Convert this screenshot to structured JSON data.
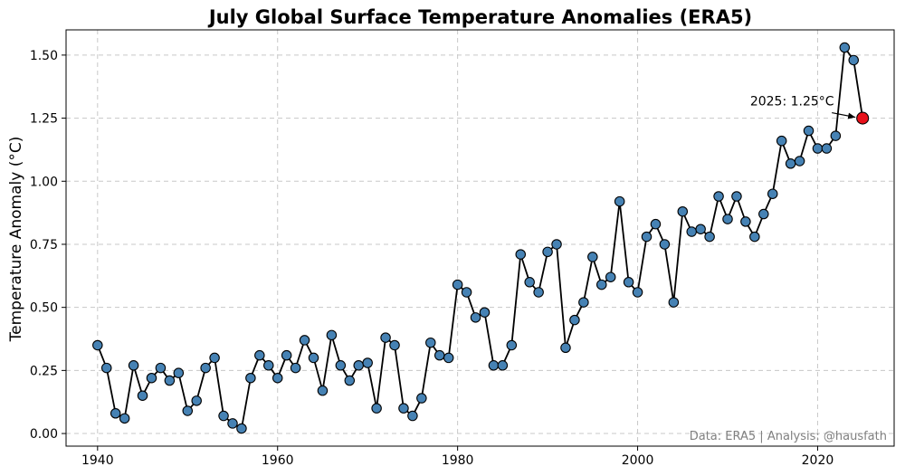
{
  "chart_data": {
    "type": "line",
    "title": "July Global Surface Temperature Anomalies (ERA5)",
    "xlabel": "",
    "ylabel": "Temperature Anomaly (°C)",
    "xlim": [
      1936.5,
      2028.5
    ],
    "ylim": [
      -0.05,
      1.6
    ],
    "grid": true,
    "x_ticks": [
      1940,
      1960,
      1980,
      2000,
      2020
    ],
    "y_ticks": [
      0.0,
      0.25,
      0.5,
      0.75,
      1.0,
      1.25,
      1.5
    ],
    "y_tick_labels": [
      "0.00",
      "0.25",
      "0.50",
      "0.75",
      "1.00",
      "1.25",
      "1.50"
    ],
    "colors": {
      "line": "#000000",
      "marker_fill": "#4682b4",
      "marker_edge": "#000000",
      "highlight_fill": "#e8101a"
    },
    "series": [
      {
        "x": [
          1940,
          1941,
          1942,
          1943,
          1944,
          1945,
          1946,
          1947,
          1948,
          1949,
          1950,
          1951,
          1952,
          1953,
          1954,
          1955,
          1956,
          1957,
          1958,
          1959,
          1960,
          1961,
          1962,
          1963,
          1964,
          1965,
          1966,
          1967,
          1968,
          1969,
          1970,
          1971,
          1972,
          1973,
          1974,
          1975,
          1976,
          1977,
          1978,
          1979,
          1980,
          1981,
          1982,
          1983,
          1984,
          1985,
          1986,
          1987,
          1988,
          1989,
          1990,
          1991,
          1992,
          1993,
          1994,
          1995,
          1996,
          1997,
          1998,
          1999,
          2000,
          2001,
          2002,
          2003,
          2004,
          2005,
          2006,
          2007,
          2008,
          2009,
          2010,
          2011,
          2012,
          2013,
          2014,
          2015,
          2016,
          2017,
          2018,
          2019,
          2020,
          2021,
          2022,
          2023,
          2024,
          2025
        ],
        "values": [
          0.35,
          0.26,
          0.08,
          0.06,
          0.27,
          0.15,
          0.22,
          0.26,
          0.21,
          0.24,
          0.09,
          0.13,
          0.26,
          0.3,
          0.07,
          0.04,
          0.02,
          0.22,
          0.31,
          0.27,
          0.22,
          0.31,
          0.26,
          0.37,
          0.3,
          0.17,
          0.39,
          0.27,
          0.21,
          0.27,
          0.28,
          0.1,
          0.38,
          0.35,
          0.1,
          0.07,
          0.14,
          0.36,
          0.31,
          0.3,
          0.59,
          0.56,
          0.46,
          0.48,
          0.27,
          0.27,
          0.35,
          0.71,
          0.6,
          0.56,
          0.72,
          0.75,
          0.34,
          0.45,
          0.52,
          0.7,
          0.59,
          0.62,
          0.92,
          0.6,
          0.56,
          0.78,
          0.83,
          0.75,
          0.52,
          0.88,
          0.8,
          0.81,
          0.78,
          0.94,
          0.85,
          0.94,
          0.84,
          0.78,
          0.87,
          0.95,
          1.16,
          1.07,
          1.08,
          1.2,
          1.13,
          1.13,
          1.18,
          1.53,
          1.48,
          1.25
        ]
      }
    ],
    "highlight": {
      "x": 2025,
      "value": 1.25,
      "label": "2025: 1.25°C"
    },
    "credit": "Data: ERA5 | Analysis: @hausfath"
  }
}
